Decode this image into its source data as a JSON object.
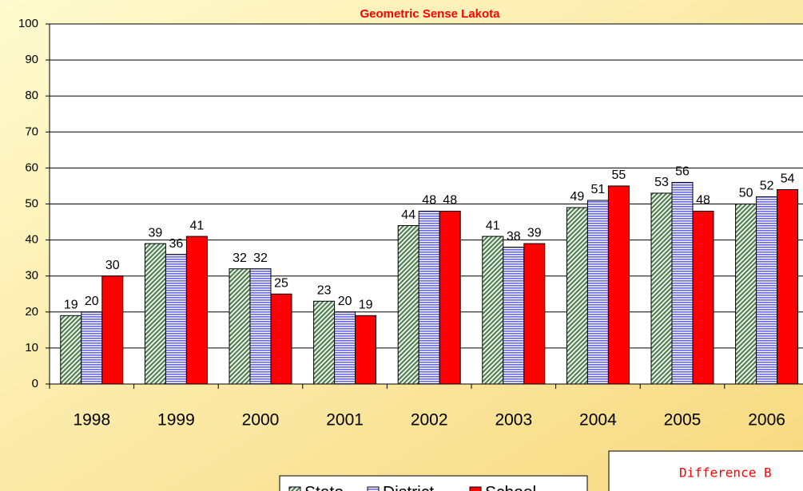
{
  "chart_data": {
    "type": "bar",
    "title": "Geometric Sense Lakota",
    "categories": [
      "1998",
      "1999",
      "2000",
      "2001",
      "2002",
      "2003",
      "2004",
      "2005",
      "2006"
    ],
    "series": [
      {
        "name": "State",
        "color": "#99cc99",
        "values": [
          19,
          39,
          32,
          23,
          44,
          41,
          49,
          53,
          50
        ]
      },
      {
        "name": "District",
        "color": "#9999ff",
        "values": [
          20,
          36,
          32,
          20,
          48,
          38,
          51,
          56,
          52
        ]
      },
      {
        "name": "School",
        "color": "#ff0000",
        "values": [
          30,
          41,
          25,
          19,
          48,
          39,
          55,
          48,
          54
        ]
      }
    ],
    "ylim": [
      0,
      100
    ],
    "yticks": [
      0,
      10,
      20,
      30,
      40,
      50,
      60,
      70,
      80,
      90,
      100
    ],
    "grid": true,
    "legend": "bottom",
    "annotation": "Difference B"
  }
}
